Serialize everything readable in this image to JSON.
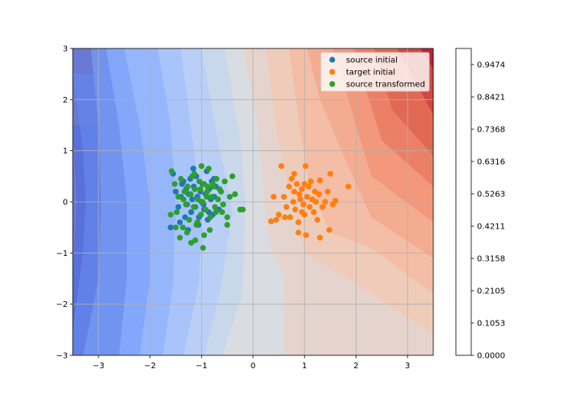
{
  "chart_data": {
    "type": "scatter",
    "title": "",
    "xlabel": "",
    "ylabel": "",
    "xlim": [
      -3.5,
      3.5
    ],
    "ylim": [
      -3,
      3
    ],
    "x_ticks": [
      "−3",
      "−2",
      "−1",
      "0",
      "1",
      "2",
      "3"
    ],
    "x_tick_values": [
      -3,
      -2,
      -1,
      0,
      1,
      2,
      3
    ],
    "y_ticks": [
      "−3",
      "−2",
      "−1",
      "0",
      "1",
      "2",
      "3"
    ],
    "y_tick_values": [
      -3,
      -2,
      -1,
      0,
      1,
      2,
      3
    ],
    "grid": true,
    "legend_position": "top-right",
    "background": {
      "type": "contourf",
      "colormap": "coolwarm",
      "alpha": 0.8,
      "description_levels": 20,
      "contour_boundaries": [
        {
          "level": 0.0526,
          "points": [
            [
              -3.5,
              -1.5
            ],
            [
              -3.42,
              0
            ],
            [
              -3.5,
              1.5
            ]
          ]
        },
        {
          "level": 0.1053,
          "points": [
            [
              -3.5,
              -2.5
            ],
            [
              -3.3,
              -1
            ],
            [
              -3.25,
              0
            ],
            [
              -3.3,
              1
            ],
            [
              -3.5,
              2.5
            ]
          ]
        },
        {
          "level": 0.1579,
          "points": [
            [
              -3.3,
              -3
            ],
            [
              -3.0,
              -1.5
            ],
            [
              -2.95,
              0
            ],
            [
              -3.0,
              1.5
            ],
            [
              -3.15,
              3
            ]
          ]
        },
        {
          "level": 0.2105,
          "points": [
            [
              -2.6,
              -3
            ],
            [
              -2.45,
              -1.5
            ],
            [
              -2.45,
              0
            ],
            [
              -2.6,
              1.5
            ],
            [
              -2.85,
              3
            ]
          ]
        },
        {
          "level": 0.2632,
          "points": [
            [
              -2.2,
              -3
            ],
            [
              -2.0,
              -1.5
            ],
            [
              -2.0,
              0
            ],
            [
              -2.2,
              1.5
            ],
            [
              -2.5,
              3
            ]
          ]
        },
        {
          "level": 0.3158,
          "points": [
            [
              -1.75,
              -3
            ],
            [
              -1.55,
              -1.6
            ],
            [
              -1.5,
              0
            ],
            [
              -1.6,
              1.5
            ],
            [
              -1.85,
              3
            ]
          ]
        },
        {
          "level": 0.3684,
          "points": [
            [
              -1.35,
              -3
            ],
            [
              -1.05,
              -1.6
            ],
            [
              -1.0,
              -0.2
            ],
            [
              -1.2,
              1.4
            ],
            [
              -1.4,
              3
            ]
          ]
        },
        {
          "level": 0.4211,
          "points": [
            [
              -0.95,
              -3
            ],
            [
              -0.65,
              -1.8
            ],
            [
              -0.4,
              -0.2
            ],
            [
              -0.7,
              1.3
            ],
            [
              -1.0,
              3
            ]
          ]
        },
        {
          "level": 0.4737,
          "points": [
            [
              -0.6,
              -3
            ],
            [
              -0.2,
              -1.8
            ],
            [
              -0.15,
              0
            ],
            [
              -0.25,
              1.2
            ],
            [
              -0.55,
              3
            ]
          ]
        },
        {
          "level": 0.5263,
          "points": [
            [
              0.6,
              -1.5
            ],
            [
              0.3,
              -0.8
            ],
            [
              0.2,
              0.3
            ],
            [
              0.1,
              1.5
            ],
            [
              -0.2,
              3
            ]
          ]
        },
        {
          "level": 0.5789,
          "points": [
            [
              3.5,
              -2.6
            ],
            [
              2.0,
              -1.6
            ],
            [
              1.0,
              -1.0
            ],
            [
              0.7,
              0.2
            ],
            [
              0.45,
              1.4
            ],
            [
              0.25,
              3
            ]
          ]
        },
        {
          "level": 0.6316,
          "points": [
            [
              3.5,
              -1.8
            ],
            [
              2.3,
              -0.9
            ],
            [
              1.5,
              -0.6
            ],
            [
              1.1,
              0.3
            ],
            [
              0.9,
              1.5
            ],
            [
              0.7,
              3
            ]
          ]
        },
        {
          "level": 0.6842,
          "points": [
            [
              3.5,
              -1.1
            ],
            [
              2.3,
              -0.3
            ],
            [
              1.8,
              0.8
            ],
            [
              1.3,
              2.0
            ],
            [
              1.05,
              3
            ]
          ]
        },
        {
          "level": 0.7368,
          "points": [
            [
              3.5,
              -0.4
            ],
            [
              2.3,
              0.5
            ],
            [
              2.0,
              1.5
            ],
            [
              1.55,
              3
            ]
          ]
        },
        {
          "level": 0.7895,
          "points": [
            [
              3.5,
              0.3
            ],
            [
              2.5,
              1.2
            ],
            [
              2.25,
              2.0
            ],
            [
              1.95,
              3
            ]
          ]
        },
        {
          "level": 0.8421,
          "points": [
            [
              3.5,
              0.9
            ],
            [
              2.7,
              1.8
            ],
            [
              2.35,
              3
            ]
          ]
        },
        {
          "level": 0.8947,
          "points": [
            [
              3.5,
              1.7
            ],
            [
              2.8,
              3
            ]
          ]
        },
        {
          "level": 0.9474,
          "points": [
            [
              3.5,
              2.6
            ],
            [
              3.25,
              3
            ]
          ]
        }
      ]
    },
    "series": [
      {
        "name": "source initial",
        "color": "#1f77b4",
        "x": [
          -1.55,
          -1.5,
          -1.45,
          -1.4,
          -1.35,
          -1.32,
          -1.3,
          -1.28,
          -1.25,
          -1.22,
          -1.2,
          -1.18,
          -1.15,
          -1.12,
          -1.1,
          -1.08,
          -1.05,
          -1.02,
          -1.0,
          -0.98,
          -0.95,
          -0.92,
          -0.9,
          -0.88,
          -0.85,
          -0.82,
          -0.8,
          -0.78,
          -0.75,
          -0.72,
          -1.6,
          -1.42,
          -1.38,
          -1.26,
          -1.16,
          -1.06,
          -0.96,
          -0.86,
          -0.76,
          -0.66
        ],
        "y": [
          0.55,
          0.2,
          -0.1,
          0.1,
          0.4,
          -0.3,
          0.25,
          -0.05,
          0.15,
          0.45,
          -0.2,
          0.05,
          0.3,
          -0.1,
          0.5,
          0.1,
          -0.3,
          0.2,
          0.0,
          0.35,
          -0.15,
          0.15,
          0.6,
          -0.35,
          0.25,
          0.05,
          0.4,
          -0.25,
          0.1,
          0.3,
          -0.5,
          -0.4,
          0.35,
          -0.55,
          0.65,
          -0.45,
          -0.05,
          -0.2,
          0.45,
          -0.15
        ]
      },
      {
        "name": "target initial",
        "color": "#ff7f0e",
        "x": [
          0.55,
          0.6,
          0.65,
          0.7,
          0.72,
          0.75,
          0.78,
          0.8,
          0.82,
          0.85,
          0.88,
          0.9,
          0.92,
          0.95,
          0.98,
          1.0,
          1.02,
          1.05,
          1.08,
          1.1,
          1.12,
          1.15,
          1.18,
          1.2,
          1.22,
          1.25,
          1.28,
          1.3,
          1.35,
          1.4,
          1.45,
          1.5,
          1.55,
          1.6,
          1.85,
          0.4,
          0.45,
          0.35,
          0.5,
          0.62,
          0.88,
          1.03,
          1.3,
          1.48,
          0.8,
          0.95,
          1.0
        ],
        "y": [
          0.7,
          0.1,
          -0.1,
          0.3,
          -0.3,
          0.45,
          0.0,
          0.2,
          -0.15,
          0.35,
          -0.4,
          0.15,
          0.05,
          0.25,
          -0.05,
          -0.25,
          0.7,
          0.1,
          0.3,
          -0.1,
          0.4,
          0.05,
          -0.2,
          0.2,
          0.0,
          -0.35,
          0.15,
          0.42,
          -0.1,
          0.0,
          0.2,
          0.55,
          -0.05,
          0.02,
          0.3,
          0.1,
          -0.35,
          -0.38,
          -0.25,
          -0.3,
          -0.6,
          -0.65,
          -0.7,
          -0.55,
          0.55,
          -0.2,
          0.35
        ]
      },
      {
        "name": "source transformed",
        "color": "#2ca02c",
        "x": [
          -1.58,
          -1.52,
          -1.48,
          -1.45,
          -1.4,
          -1.36,
          -1.33,
          -1.3,
          -1.27,
          -1.24,
          -1.21,
          -1.18,
          -1.15,
          -1.13,
          -1.1,
          -1.07,
          -1.04,
          -1.01,
          -0.98,
          -0.95,
          -0.92,
          -0.89,
          -0.86,
          -0.83,
          -0.8,
          -0.77,
          -0.74,
          -0.71,
          -0.68,
          -0.65,
          -0.6,
          -0.55,
          -0.5,
          -0.45,
          -0.4,
          -0.35,
          -0.25,
          -0.2,
          -1.6,
          -1.5,
          -1.42,
          -1.35,
          -1.28,
          -1.2,
          -1.14,
          -1.08,
          -1.02,
          -0.97,
          -0.9,
          -0.84,
          -0.78,
          -0.72,
          -0.62,
          -0.58,
          -0.5,
          -1.0,
          -0.95,
          -1.12,
          -0.88
        ],
        "y": [
          0.6,
          0.35,
          -0.2,
          0.1,
          0.45,
          -0.5,
          0.2,
          -0.05,
          0.3,
          -0.35,
          0.15,
          0.5,
          -0.1,
          0.25,
          -0.45,
          0.05,
          0.4,
          -0.25,
          0.0,
          0.35,
          -0.15,
          0.2,
          0.65,
          -0.3,
          0.1,
          0.3,
          -0.1,
          0.45,
          0.05,
          0.25,
          -0.2,
          0.4,
          -0.3,
          0.1,
          0.5,
          0.15,
          -0.15,
          -0.15,
          -0.25,
          -0.5,
          -0.7,
          0.05,
          -0.6,
          -0.8,
          0.55,
          -0.4,
          0.25,
          -0.9,
          0.1,
          -0.55,
          0.35,
          -0.2,
          0.2,
          -0.05,
          -0.45,
          0.7,
          -0.65,
          -0.75,
          0.3
        ]
      }
    ],
    "colorbar": {
      "ticks": [
        "0.0000",
        "0.1053",
        "0.2105",
        "0.3158",
        "0.4211",
        "0.5263",
        "0.6316",
        "0.7368",
        "0.8421",
        "0.9474"
      ],
      "tick_values": [
        0.0,
        0.1053,
        0.2105,
        0.3158,
        0.4211,
        0.5263,
        0.6316,
        0.7368,
        0.8421,
        0.9474
      ],
      "range": [
        0,
        1
      ],
      "levels": 19
    }
  }
}
